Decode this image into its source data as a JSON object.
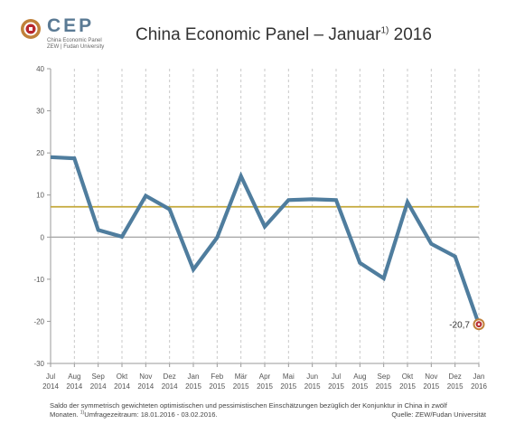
{
  "logo": {
    "name": "CEP",
    "sub1": "China Economic Panel",
    "sub2": "ZEW | Fudan University",
    "colors": {
      "ring": "#c0813a",
      "center": "#b8282e"
    }
  },
  "title": {
    "main": "China Economic Panel – Januar",
    "sup": "1)",
    "year": " 2016"
  },
  "chart_data": {
    "type": "line",
    "categories": [
      [
        "Jul",
        "2014"
      ],
      [
        "Aug",
        "2014"
      ],
      [
        "Sep",
        "2014"
      ],
      [
        "Okt",
        "2014"
      ],
      [
        "Nov",
        "2014"
      ],
      [
        "Dez",
        "2014"
      ],
      [
        "Jan",
        "2015"
      ],
      [
        "Feb",
        "2015"
      ],
      [
        "Mär",
        "2015"
      ],
      [
        "Apr",
        "2015"
      ],
      [
        "Mai",
        "2015"
      ],
      [
        "Jun",
        "2015"
      ],
      [
        "Jul",
        "2015"
      ],
      [
        "Aug",
        "2015"
      ],
      [
        "Sep",
        "2015"
      ],
      [
        "Okt",
        "2015"
      ],
      [
        "Nov",
        "2015"
      ],
      [
        "Dez",
        "2015"
      ],
      [
        "Jan",
        "2016"
      ]
    ],
    "series": [
      {
        "values": [
          19.0,
          18.7,
          1.7,
          0.1,
          9.8,
          6.6,
          -7.7,
          -0.1,
          14.5,
          2.5,
          8.8,
          9.0,
          8.8,
          -6.1,
          -9.8,
          8.3,
          -1.6,
          -4.6,
          -20.7
        ],
        "color": "#4f7d9e"
      }
    ],
    "average_line": {
      "value": 7.2,
      "color": "#c4a93a"
    },
    "ylim": [
      -30,
      40
    ],
    "yticks": [
      -30,
      -20,
      -10,
      0,
      10,
      20,
      30,
      40
    ],
    "grid": "vertical-dashed",
    "zero_line_color": "#aaaaaa",
    "highlight": {
      "index": 18,
      "label": "-20,7",
      "ring_color": "#c0813a",
      "center_color": "#b8282e"
    }
  },
  "footnote": {
    "text1": "Saldo der symmetrisch gewichteten optimistischen und pessimistischen Einschätzungen bezüglich der Konjunktur in China in zwölf",
    "text2a": "Monaten. ",
    "text2sup": "1)",
    "text2b": "Umfragezeitraum: 18.01.2016 - 03.02.2016."
  },
  "source": "Quelle: ZEW/Fudan Universität"
}
